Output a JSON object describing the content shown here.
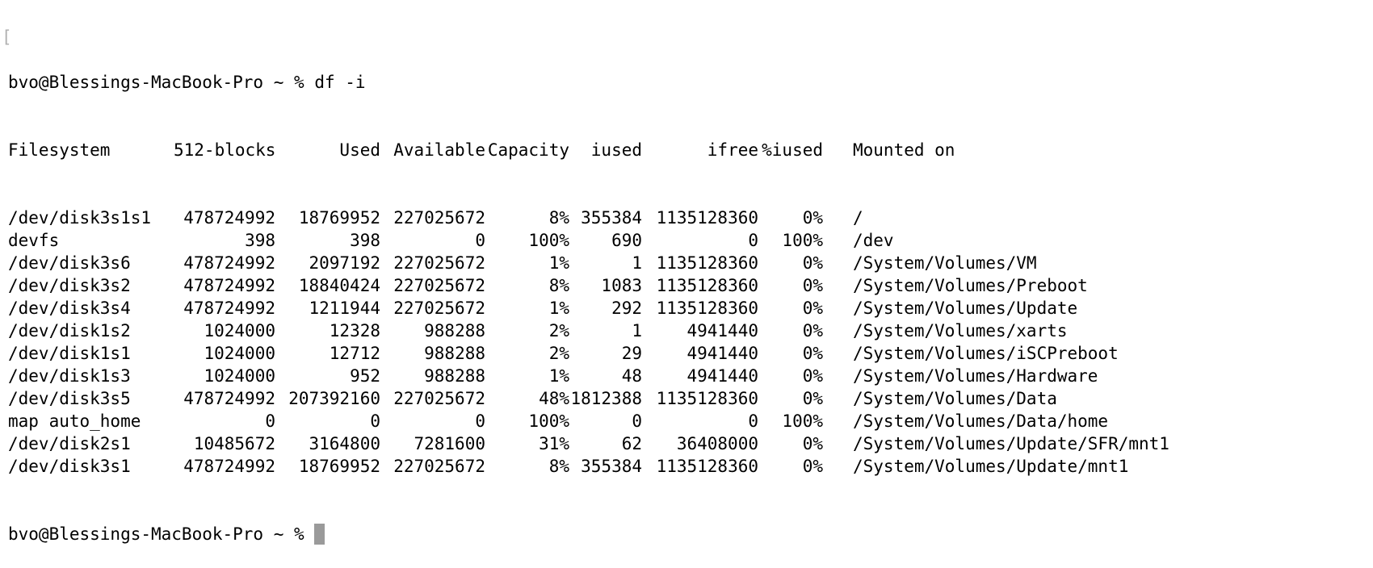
{
  "terminal": {
    "prompt": "bvo@Blessings-MacBook-Pro ~ %",
    "command": "df -i",
    "headers": {
      "filesystem": "Filesystem",
      "blocks": "512-blocks",
      "used": "Used",
      "available": "Available",
      "capacity": "Capacity",
      "iused": "iused",
      "ifree": "ifree",
      "piused": "%iused",
      "mounted": "Mounted on"
    },
    "rows": [
      {
        "filesystem": "/dev/disk3s1s1",
        "blocks": "478724992",
        "used": "18769952",
        "available": "227025672",
        "capacity": "8%",
        "iused": "355384",
        "ifree": "1135128360",
        "piused": "0%",
        "mounted": "/"
      },
      {
        "filesystem": "devfs",
        "blocks": "398",
        "used": "398",
        "available": "0",
        "capacity": "100%",
        "iused": "690",
        "ifree": "0",
        "piused": "100%",
        "mounted": "/dev"
      },
      {
        "filesystem": "/dev/disk3s6",
        "blocks": "478724992",
        "used": "2097192",
        "available": "227025672",
        "capacity": "1%",
        "iused": "1",
        "ifree": "1135128360",
        "piused": "0%",
        "mounted": "/System/Volumes/VM"
      },
      {
        "filesystem": "/dev/disk3s2",
        "blocks": "478724992",
        "used": "18840424",
        "available": "227025672",
        "capacity": "8%",
        "iused": "1083",
        "ifree": "1135128360",
        "piused": "0%",
        "mounted": "/System/Volumes/Preboot"
      },
      {
        "filesystem": "/dev/disk3s4",
        "blocks": "478724992",
        "used": "1211944",
        "available": "227025672",
        "capacity": "1%",
        "iused": "292",
        "ifree": "1135128360",
        "piused": "0%",
        "mounted": "/System/Volumes/Update"
      },
      {
        "filesystem": "/dev/disk1s2",
        "blocks": "1024000",
        "used": "12328",
        "available": "988288",
        "capacity": "2%",
        "iused": "1",
        "ifree": "4941440",
        "piused": "0%",
        "mounted": "/System/Volumes/xarts"
      },
      {
        "filesystem": "/dev/disk1s1",
        "blocks": "1024000",
        "used": "12712",
        "available": "988288",
        "capacity": "2%",
        "iused": "29",
        "ifree": "4941440",
        "piused": "0%",
        "mounted": "/System/Volumes/iSCPreboot"
      },
      {
        "filesystem": "/dev/disk1s3",
        "blocks": "1024000",
        "used": "952",
        "available": "988288",
        "capacity": "1%",
        "iused": "48",
        "ifree": "4941440",
        "piused": "0%",
        "mounted": "/System/Volumes/Hardware"
      },
      {
        "filesystem": "/dev/disk3s5",
        "blocks": "478724992",
        "used": "207392160",
        "available": "227025672",
        "capacity": "48%",
        "iused": "1812388",
        "ifree": "1135128360",
        "piused": "0%",
        "mounted": "/System/Volumes/Data"
      },
      {
        "filesystem": "map auto_home",
        "blocks": "0",
        "used": "0",
        "available": "0",
        "capacity": "100%",
        "iused": "0",
        "ifree": "0",
        "piused": "100%",
        "mounted": "/System/Volumes/Data/home"
      },
      {
        "filesystem": "/dev/disk2s1",
        "blocks": "10485672",
        "used": "3164800",
        "available": "7281600",
        "capacity": "31%",
        "iused": "62",
        "ifree": "36408000",
        "piused": "0%",
        "mounted": "/System/Volumes/Update/SFR/mnt1"
      },
      {
        "filesystem": "/dev/disk3s1",
        "blocks": "478724992",
        "used": "18769952",
        "available": "227025672",
        "capacity": "8%",
        "iused": "355384",
        "ifree": "1135128360",
        "piused": "0%",
        "mounted": "/System/Volumes/Update/mnt1"
      }
    ]
  }
}
